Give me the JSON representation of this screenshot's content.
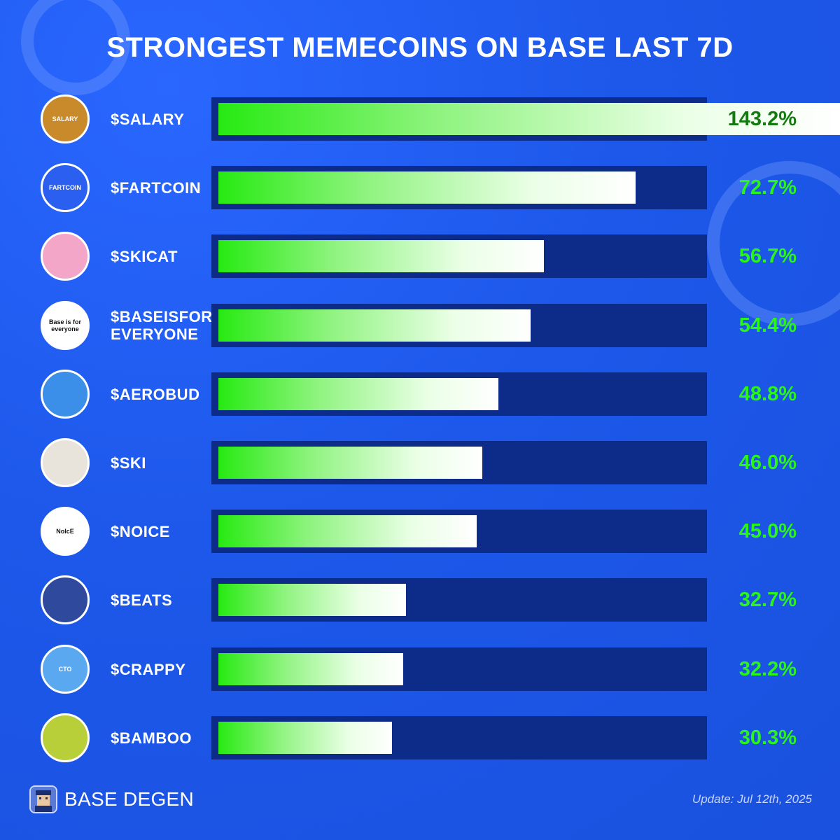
{
  "header": {
    "title": "STRONGEST MEMECOINS ON BASE LAST 7D"
  },
  "chart_data": {
    "type": "bar",
    "title": "STRONGEST MEMECOINS ON BASE LAST 7D",
    "categories": [
      "$SALARY",
      "$FARTCOIN",
      "$SKICAT",
      "$BASEISFOR EVERYONE",
      "$AEROBUD",
      "$SKI",
      "$NOICE",
      "$BEATS",
      "$CRAPPY",
      "$BAMBOO"
    ],
    "values": [
      143.2,
      72.7,
      56.7,
      54.4,
      48.8,
      46.0,
      45.0,
      32.7,
      32.2,
      30.3
    ],
    "value_labels": [
      "143.2%",
      "72.7%",
      "56.7%",
      "54.4%",
      "48.8%",
      "46.0%",
      "45.0%",
      "32.7%",
      "32.2%",
      "30.3%"
    ],
    "unit": "%",
    "orientation": "horizontal",
    "grid": false
  },
  "rows": [
    {
      "name_lines": [
        "$SALARY"
      ],
      "avatar": "salary-coin-icon",
      "avatar_text": "SALARY",
      "avatar_bg": "#c98a2c"
    },
    {
      "name_lines": [
        "$FARTCOIN"
      ],
      "avatar": "fartcoin-icon",
      "avatar_text": "FARTCOIN",
      "avatar_bg": "#2a5ff0"
    },
    {
      "name_lines": [
        "$SKICAT"
      ],
      "avatar": "pink-ski-mask-cat-icon",
      "avatar_text": "",
      "avatar_bg": "#f3a6c8"
    },
    {
      "name_lines": [
        "$BASEISFOR",
        "EVERYONE"
      ],
      "avatar": "base-is-for-everyone-icon",
      "avatar_text": "Base is for everyone",
      "avatar_bg": "#ffffff"
    },
    {
      "name_lines": [
        "$AEROBUD"
      ],
      "avatar": "golden-retriever-icon",
      "avatar_text": "",
      "avatar_bg": "#3b8fe8"
    },
    {
      "name_lines": [
        "$SKI"
      ],
      "avatar": "ski-dog-icon",
      "avatar_text": "",
      "avatar_bg": "#e8e4dc"
    },
    {
      "name_lines": [
        "$NOICE"
      ],
      "avatar": "noice-text-icon",
      "avatar_text": "NoIcE",
      "avatar_bg": "#ffffff"
    },
    {
      "name_lines": [
        "$BEATS"
      ],
      "avatar": "koala-character-icon",
      "avatar_text": "",
      "avatar_bg": "#2f4a9c"
    },
    {
      "name_lines": [
        "$CRAPPY"
      ],
      "avatar": "crappy-bird-icon",
      "avatar_text": "CTO",
      "avatar_bg": "#5aa8f0"
    },
    {
      "name_lines": [
        "$BAMBOO"
      ],
      "avatar": "bamboo-icon",
      "avatar_text": "",
      "avatar_bg": "#b9cf3a"
    }
  ],
  "footer": {
    "brand": "BASE DEGEN",
    "update": "Update: Jul 12th, 2025"
  }
}
